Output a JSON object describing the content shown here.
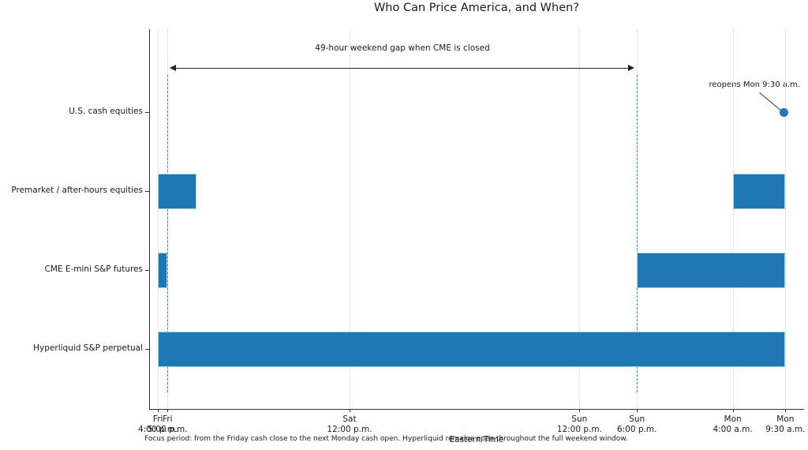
{
  "title": "Who Can Price America, and When?",
  "xlabel": "Eastern Time",
  "footnote": "Focus period: from the Friday cash close to the next Monday cash open. Hyperliquid remains open throughout the full weekend window.",
  "annotations": {
    "gap_label": "49-hour weekend gap when CME is closed",
    "reopen_label": "reopens Mon 9:30 a.m."
  },
  "colors": {
    "bar": "#1f77b4",
    "bar_edge": "#a6d4ee",
    "dashed_line": "#2f85c2",
    "grid": "#e6e6e6",
    "axis": "#333333",
    "text": "#1a1a1a"
  },
  "chart_data": {
    "type": "bar",
    "subtype": "broken-horizontal-bar-timeline",
    "time_unit": "hours after Fri 4:00 p.m. Eastern Time",
    "x_range_hours": [
      -0.9,
      67.5
    ],
    "grid": "vertical-on",
    "rows": [
      {
        "label": "U.S. cash equities",
        "segments": [],
        "marker_hour": 65.5,
        "marker_meaning": "reopens Mon 9:30 a.m."
      },
      {
        "label": "Premarket / after-hours equities",
        "segments": [
          [
            0,
            4
          ],
          [
            60,
            65.5
          ]
        ]
      },
      {
        "label": "CME E-mini S&P futures",
        "segments": [
          [
            0,
            1
          ],
          [
            50,
            65.5
          ]
        ]
      },
      {
        "label": "Hyperliquid S&P perpetual",
        "segments": [
          [
            0,
            65.5
          ]
        ]
      }
    ],
    "ticks": [
      {
        "hour": 0,
        "label": "Fri\n4:00 p.m."
      },
      {
        "hour": 1,
        "label": "Fri\n5:00 p.m."
      },
      {
        "hour": 20,
        "label": "Sat\n12:00 p.m."
      },
      {
        "hour": 44,
        "label": "Sun\n12:00 p.m."
      },
      {
        "hour": 50,
        "label": "Sun\n6:00 p.m."
      },
      {
        "hour": 60,
        "label": "Mon\n4:00 a.m."
      },
      {
        "hour": 65.5,
        "label": "Mon\n9:30 a.m."
      }
    ],
    "dashed_lines_hours": [
      1,
      50
    ],
    "gap_arrow": {
      "from_hour": 1,
      "to_hour": 50
    }
  }
}
